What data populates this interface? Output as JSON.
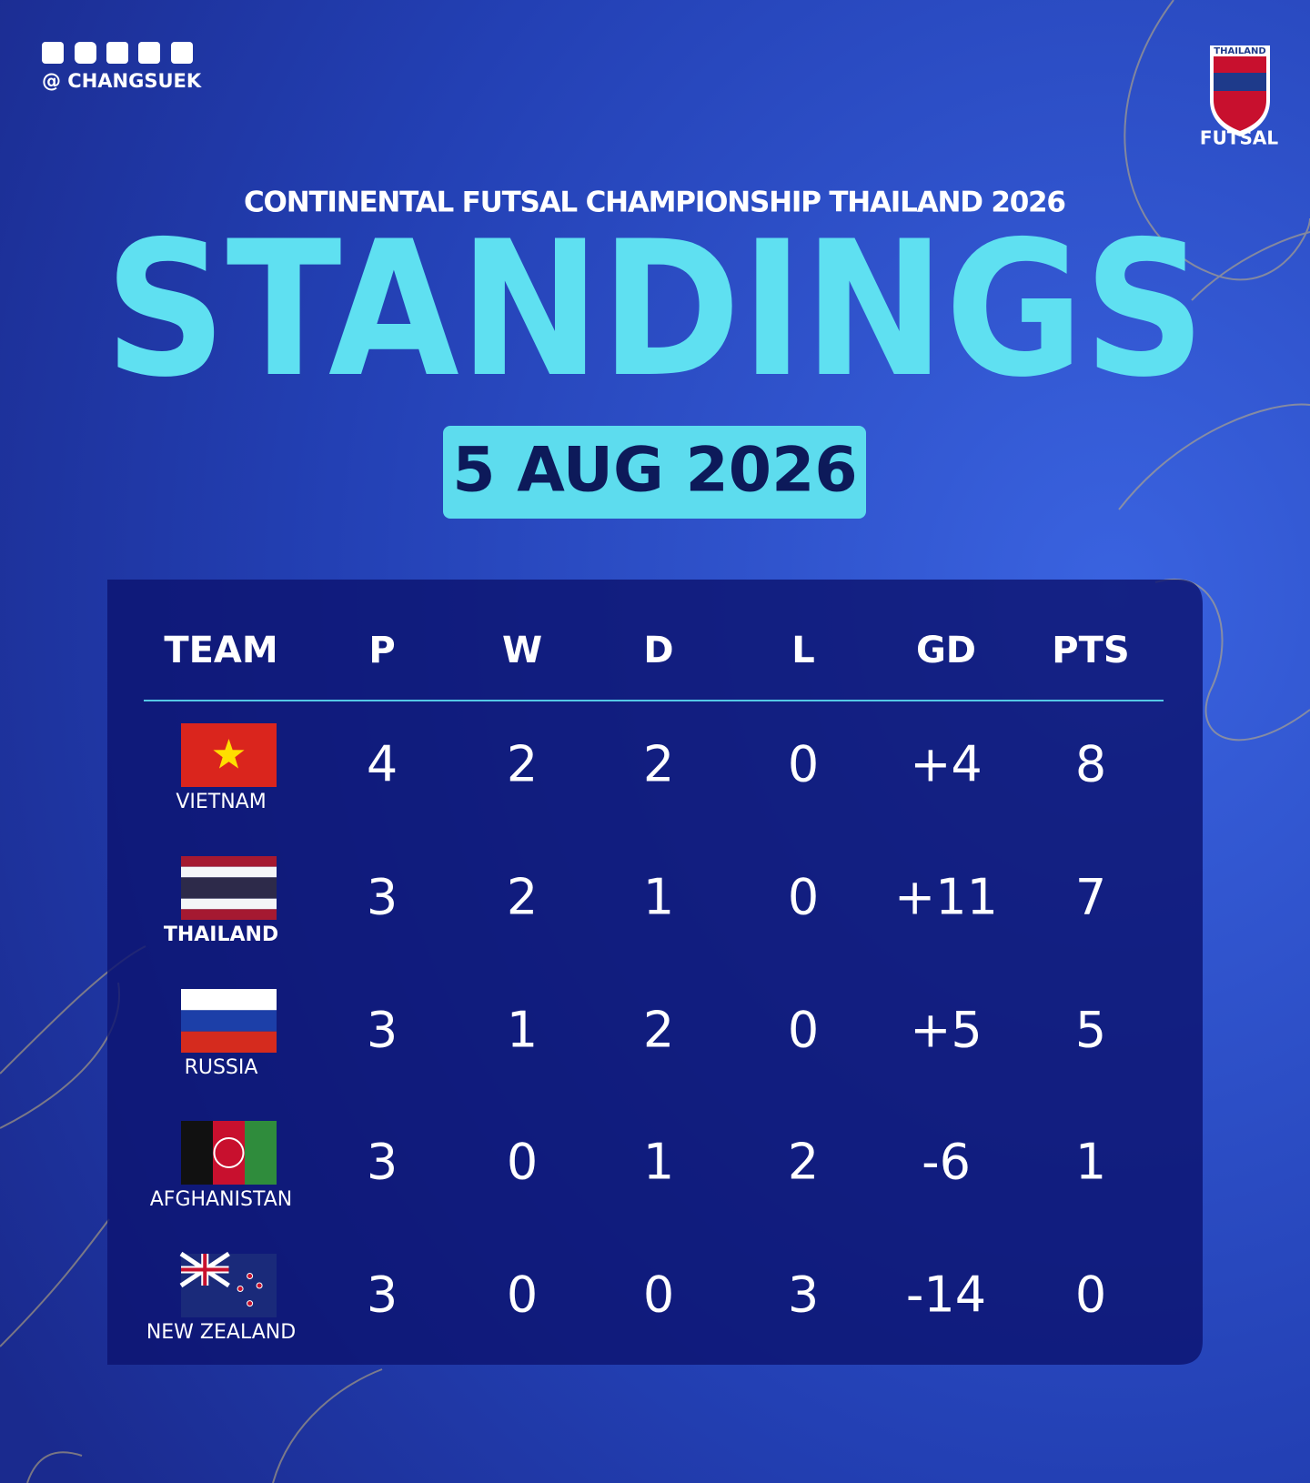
{
  "header": {
    "handle": "@ CHANGSUEK",
    "logo_top": "THAILAND",
    "logo_bottom": "FUTSAL",
    "subtitle": "CONTINENTAL FUTSAL CHAMPIONSHIP THAILAND 2026",
    "title": "STANDINGS",
    "date": "5 AUG 2026"
  },
  "table": {
    "columns": [
      "TEAM",
      "P",
      "W",
      "D",
      "L",
      "GD",
      "PTS"
    ],
    "rows": [
      [
        "VIETNAM",
        "4",
        "2",
        "2",
        "0",
        "+4",
        "8"
      ],
      [
        "THAILAND",
        "3",
        "2",
        "1",
        "0",
        "+11",
        "7"
      ],
      [
        "RUSSIA",
        "3",
        "1",
        "2",
        "0",
        "+5",
        "5"
      ],
      [
        "AFGHANISTAN",
        "3",
        "0",
        "1",
        "2",
        "-6",
        "1"
      ],
      [
        "NEW ZEALAND",
        "3",
        "0",
        "0",
        "3",
        "-14",
        "0"
      ]
    ]
  }
}
